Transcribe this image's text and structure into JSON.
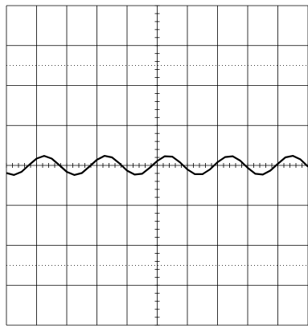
{
  "chart_data": {
    "type": "line",
    "x": [
      0,
      0.25,
      0.5,
      0.75,
      1,
      1.25,
      1.5,
      1.75,
      2,
      2.25,
      2.5,
      2.75,
      3,
      3.25,
      3.5,
      3.75,
      4,
      4.25,
      4.5,
      4.75,
      5,
      5.25,
      5.5,
      5.75,
      6,
      6.25,
      6.5,
      6.75,
      7,
      7.25,
      7.5,
      7.75,
      8,
      8.25,
      8.5,
      8.75,
      9,
      9.25,
      9.5,
      9.75,
      10
    ],
    "series": [
      {
        "color": "#000000",
        "values": [
          -0.19,
          -0.24,
          -0.16,
          0.01,
          0.17,
          0.24,
          0.17,
          0.01,
          -0.16,
          -0.24,
          -0.19,
          -0.03,
          0.14,
          0.24,
          0.2,
          0.05,
          -0.13,
          -0.23,
          -0.21,
          -0.06,
          0.11,
          0.23,
          0.22,
          0.08,
          -0.1,
          -0.22,
          -0.22,
          -0.1,
          0.08,
          0.21,
          0.23,
          0.12,
          -0.06,
          -0.21,
          -0.23,
          -0.13,
          0.04,
          0.2,
          0.24,
          0.15,
          -0.03
        ]
      }
    ],
    "xlim": [
      0,
      10
    ],
    "ylim": [
      -4,
      4
    ],
    "xticks": [
      0,
      1,
      2,
      3,
      4,
      5,
      6,
      7,
      8,
      9,
      10
    ],
    "yticks": [
      -4,
      -3,
      -2,
      -1,
      0,
      1,
      2,
      3,
      4
    ],
    "grid": true
  }
}
